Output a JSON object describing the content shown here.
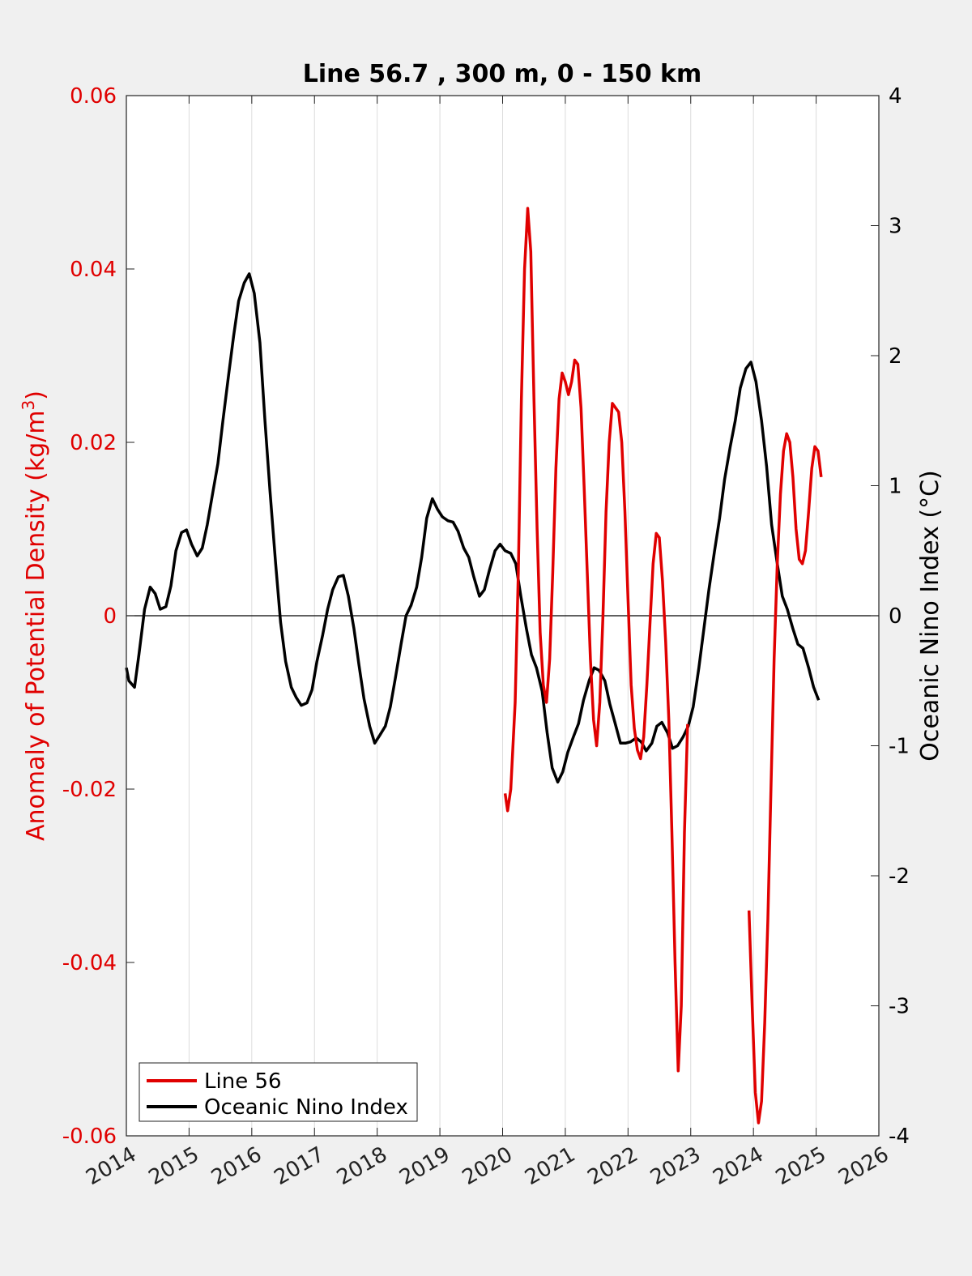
{
  "chart_data": {
    "type": "line",
    "title": "Line 56.7 , 300 m, 0 - 150 km",
    "ylabel_left_main": "Anomaly of Potential Density (kg/m",
    "ylabel_left_sup": "3",
    "ylabel_left_close": ")",
    "ylabel_right": "Oceanic Nino Index (°C)",
    "xlim": [
      2014,
      2026
    ],
    "ylim_left": [
      -0.06,
      0.06
    ],
    "ylim_right": [
      -4,
      4
    ],
    "x_ticks": [
      "2014",
      "2015",
      "2016",
      "2017",
      "2018",
      "2019",
      "2020",
      "2021",
      "2022",
      "2023",
      "2024",
      "2025",
      "2026"
    ],
    "y_ticks_left": [
      "0.06",
      "0.04",
      "0.02",
      "0",
      "-0.02",
      "-0.04",
      "-0.06"
    ],
    "y_ticks_right": [
      "4",
      "3",
      "2",
      "1",
      "0",
      "-1",
      "-2",
      "-3",
      "-4"
    ],
    "grid": "vertical",
    "legend_location": "bottom-left",
    "series": [
      {
        "name": "Line 56",
        "axis": "left",
        "color": "#e00000",
        "segments": [
          [
            [
              2020.04,
              -0.0205
            ],
            [
              2020.08,
              -0.0225
            ],
            [
              2020.13,
              -0.02
            ],
            [
              2020.2,
              -0.01
            ],
            [
              2020.25,
              0.005
            ],
            [
              2020.3,
              0.025
            ],
            [
              2020.35,
              0.04
            ],
            [
              2020.4,
              0.047
            ],
            [
              2020.45,
              0.042
            ],
            [
              2020.5,
              0.025
            ],
            [
              2020.55,
              0.01
            ],
            [
              2020.6,
              -0.002
            ],
            [
              2020.65,
              -0.008
            ],
            [
              2020.7,
              -0.01
            ],
            [
              2020.75,
              -0.005
            ],
            [
              2020.8,
              0.005
            ],
            [
              2020.85,
              0.017
            ],
            [
              2020.9,
              0.025
            ],
            [
              2020.95,
              0.028
            ],
            [
              2021.0,
              0.027
            ],
            [
              2021.05,
              0.0255
            ],
            [
              2021.1,
              0.027
            ],
            [
              2021.15,
              0.0295
            ],
            [
              2021.2,
              0.029
            ],
            [
              2021.25,
              0.024
            ],
            [
              2021.3,
              0.015
            ],
            [
              2021.35,
              0.005
            ],
            [
              2021.4,
              -0.005
            ],
            [
              2021.45,
              -0.012
            ],
            [
              2021.5,
              -0.015
            ],
            [
              2021.55,
              -0.01
            ],
            [
              2021.6,
              0.0
            ],
            [
              2021.65,
              0.012
            ],
            [
              2021.7,
              0.02
            ],
            [
              2021.75,
              0.0245
            ],
            [
              2021.8,
              0.024
            ],
            [
              2021.85,
              0.0235
            ],
            [
              2021.9,
              0.02
            ],
            [
              2021.95,
              0.012
            ],
            [
              2022.0,
              0.002
            ],
            [
              2022.05,
              -0.008
            ],
            [
              2022.1,
              -0.013
            ],
            [
              2022.15,
              -0.0155
            ],
            [
              2022.2,
              -0.0165
            ],
            [
              2022.25,
              -0.014
            ],
            [
              2022.3,
              -0.008
            ],
            [
              2022.35,
              -0.001
            ],
            [
              2022.4,
              0.006
            ],
            [
              2022.45,
              0.0095
            ],
            [
              2022.5,
              0.009
            ],
            [
              2022.55,
              0.004
            ],
            [
              2022.6,
              -0.003
            ],
            [
              2022.65,
              -0.012
            ],
            [
              2022.7,
              -0.025
            ],
            [
              2022.75,
              -0.04
            ],
            [
              2022.8,
              -0.0525
            ],
            [
              2022.85,
              -0.045
            ],
            [
              2022.9,
              -0.025
            ],
            [
              2022.95,
              -0.0125
            ]
          ],
          [
            [
              2023.93,
              -0.034
            ],
            [
              2023.98,
              -0.045
            ],
            [
              2024.03,
              -0.055
            ],
            [
              2024.08,
              -0.0585
            ],
            [
              2024.13,
              -0.056
            ],
            [
              2024.18,
              -0.047
            ],
            [
              2024.23,
              -0.035
            ],
            [
              2024.28,
              -0.02
            ],
            [
              2024.33,
              -0.005
            ],
            [
              2024.38,
              0.006
            ],
            [
              2024.43,
              0.014
            ],
            [
              2024.48,
              0.019
            ],
            [
              2024.53,
              0.021
            ],
            [
              2024.58,
              0.02
            ],
            [
              2024.63,
              0.016
            ],
            [
              2024.68,
              0.01
            ],
            [
              2024.73,
              0.0065
            ],
            [
              2024.78,
              0.006
            ],
            [
              2024.83,
              0.0075
            ],
            [
              2024.88,
              0.012
            ],
            [
              2024.93,
              0.017
            ],
            [
              2024.98,
              0.0195
            ],
            [
              2025.03,
              0.019
            ],
            [
              2025.08,
              0.016
            ]
          ]
        ]
      },
      {
        "name": "Oceanic Nino Index",
        "axis": "right",
        "color": "#000000",
        "points": [
          [
            2014.0,
            -0.4
          ],
          [
            2014.04,
            -0.5
          ],
          [
            2014.13,
            -0.55
          ],
          [
            2014.2,
            -0.3
          ],
          [
            2014.29,
            0.05
          ],
          [
            2014.38,
            0.22
          ],
          [
            2014.46,
            0.17
          ],
          [
            2014.54,
            0.05
          ],
          [
            2014.63,
            0.07
          ],
          [
            2014.71,
            0.23
          ],
          [
            2014.79,
            0.5
          ],
          [
            2014.88,
            0.64
          ],
          [
            2014.96,
            0.66
          ],
          [
            2015.04,
            0.55
          ],
          [
            2015.13,
            0.46
          ],
          [
            2015.21,
            0.52
          ],
          [
            2015.29,
            0.7
          ],
          [
            2015.38,
            0.95
          ],
          [
            2015.46,
            1.17
          ],
          [
            2015.54,
            1.5
          ],
          [
            2015.63,
            1.85
          ],
          [
            2015.71,
            2.15
          ],
          [
            2015.79,
            2.42
          ],
          [
            2015.88,
            2.56
          ],
          [
            2015.96,
            2.63
          ],
          [
            2016.04,
            2.48
          ],
          [
            2016.13,
            2.1
          ],
          [
            2016.21,
            1.5
          ],
          [
            2016.29,
            0.96
          ],
          [
            2016.38,
            0.4
          ],
          [
            2016.46,
            -0.05
          ],
          [
            2016.54,
            -0.35
          ],
          [
            2016.63,
            -0.55
          ],
          [
            2016.71,
            -0.63
          ],
          [
            2016.79,
            -0.69
          ],
          [
            2016.88,
            -0.67
          ],
          [
            2016.96,
            -0.57
          ],
          [
            2017.04,
            -0.35
          ],
          [
            2017.13,
            -0.15
          ],
          [
            2017.21,
            0.05
          ],
          [
            2017.29,
            0.2
          ],
          [
            2017.38,
            0.3
          ],
          [
            2017.46,
            0.31
          ],
          [
            2017.54,
            0.15
          ],
          [
            2017.63,
            -0.1
          ],
          [
            2017.71,
            -0.38
          ],
          [
            2017.79,
            -0.64
          ],
          [
            2017.88,
            -0.85
          ],
          [
            2017.96,
            -0.98
          ],
          [
            2018.04,
            -0.92
          ],
          [
            2018.13,
            -0.85
          ],
          [
            2018.21,
            -0.7
          ],
          [
            2018.29,
            -0.48
          ],
          [
            2018.38,
            -0.22
          ],
          [
            2018.46,
            0.0
          ],
          [
            2018.54,
            0.08
          ],
          [
            2018.63,
            0.22
          ],
          [
            2018.71,
            0.45
          ],
          [
            2018.79,
            0.75
          ],
          [
            2018.88,
            0.9
          ],
          [
            2018.96,
            0.82
          ],
          [
            2019.04,
            0.76
          ],
          [
            2019.13,
            0.73
          ],
          [
            2019.21,
            0.72
          ],
          [
            2019.29,
            0.65
          ],
          [
            2019.38,
            0.52
          ],
          [
            2019.46,
            0.45
          ],
          [
            2019.54,
            0.3
          ],
          [
            2019.63,
            0.15
          ],
          [
            2019.71,
            0.2
          ],
          [
            2019.79,
            0.35
          ],
          [
            2019.88,
            0.5
          ],
          [
            2019.96,
            0.55
          ],
          [
            2020.04,
            0.5
          ],
          [
            2020.13,
            0.48
          ],
          [
            2020.21,
            0.4
          ],
          [
            2020.29,
            0.15
          ],
          [
            2020.38,
            -0.1
          ],
          [
            2020.46,
            -0.3
          ],
          [
            2020.54,
            -0.4
          ],
          [
            2020.63,
            -0.58
          ],
          [
            2020.71,
            -0.9
          ],
          [
            2020.79,
            -1.17
          ],
          [
            2020.88,
            -1.28
          ],
          [
            2020.96,
            -1.2
          ],
          [
            2021.04,
            -1.05
          ],
          [
            2021.13,
            -0.93
          ],
          [
            2021.21,
            -0.83
          ],
          [
            2021.29,
            -0.65
          ],
          [
            2021.38,
            -0.5
          ],
          [
            2021.46,
            -0.4
          ],
          [
            2021.54,
            -0.42
          ],
          [
            2021.63,
            -0.5
          ],
          [
            2021.71,
            -0.68
          ],
          [
            2021.79,
            -0.82
          ],
          [
            2021.88,
            -0.98
          ],
          [
            2021.96,
            -0.98
          ],
          [
            2022.04,
            -0.97
          ],
          [
            2022.13,
            -0.94
          ],
          [
            2022.21,
            -0.97
          ],
          [
            2022.29,
            -1.04
          ],
          [
            2022.38,
            -0.98
          ],
          [
            2022.46,
            -0.85
          ],
          [
            2022.54,
            -0.82
          ],
          [
            2022.63,
            -0.9
          ],
          [
            2022.71,
            -1.02
          ],
          [
            2022.79,
            -1.0
          ],
          [
            2022.88,
            -0.93
          ],
          [
            2022.96,
            -0.85
          ],
          [
            2023.04,
            -0.7
          ],
          [
            2023.13,
            -0.4
          ],
          [
            2023.21,
            -0.1
          ],
          [
            2023.29,
            0.2
          ],
          [
            2023.38,
            0.5
          ],
          [
            2023.46,
            0.75
          ],
          [
            2023.54,
            1.05
          ],
          [
            2023.63,
            1.3
          ],
          [
            2023.71,
            1.5
          ],
          [
            2023.79,
            1.75
          ],
          [
            2023.88,
            1.9
          ],
          [
            2023.96,
            1.95
          ],
          [
            2024.04,
            1.8
          ],
          [
            2024.13,
            1.5
          ],
          [
            2024.21,
            1.15
          ],
          [
            2024.29,
            0.7
          ],
          [
            2024.38,
            0.4
          ],
          [
            2024.46,
            0.15
          ],
          [
            2024.54,
            0.05
          ],
          [
            2024.63,
            -0.1
          ],
          [
            2024.71,
            -0.22
          ],
          [
            2024.79,
            -0.25
          ],
          [
            2024.88,
            -0.4
          ],
          [
            2024.96,
            -0.55
          ],
          [
            2025.04,
            -0.65
          ]
        ]
      }
    ]
  }
}
